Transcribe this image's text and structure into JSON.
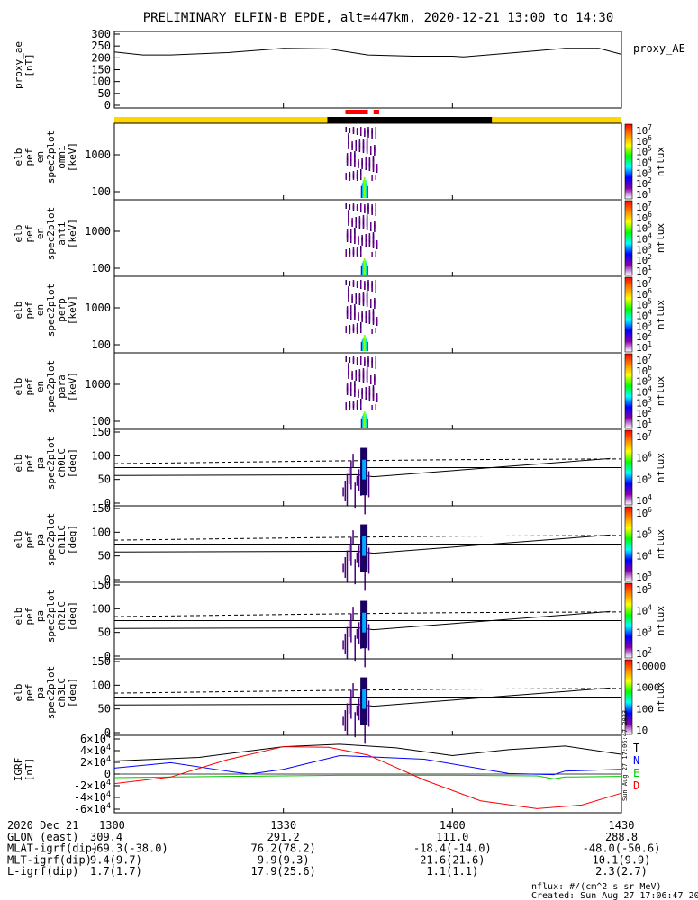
{
  "title": "PRELIMINARY ELFIN-B EPDE, alt=447km, 2020-12-21 13:00 to 14:30",
  "chart_data": {
    "type": "line",
    "x_ticks": [
      "1300",
      "1330",
      "1400",
      "1430"
    ],
    "x_range": [
      "13:00",
      "14:30"
    ],
    "panels": [
      {
        "id": "ae",
        "ylabel": [
          "proxy_ae",
          "[nT]"
        ],
        "yticks": [
          "300",
          "250",
          "200",
          "150",
          "100",
          "50",
          "0"
        ],
        "ylim": [
          0,
          300
        ],
        "legend": "proxy_AE",
        "x_min": [
          0,
          5,
          10,
          20,
          30,
          38,
          45,
          53,
          60,
          62,
          70,
          80,
          86,
          90
        ],
        "values": [
          225,
          212,
          212,
          222,
          240,
          238,
          212,
          207,
          207,
          204,
          220,
          240,
          240,
          215
        ]
      },
      {
        "id": "spec-omni",
        "ylabel": [
          "elb",
          "pef",
          "en",
          "spec2plot",
          "omni",
          "[keV]"
        ],
        "yticks": [
          "1000",
          "100"
        ],
        "cbar_ticks": [
          "10^7",
          "10^6",
          "10^5",
          "10^4",
          "10^3",
          "10^2",
          "10^1"
        ],
        "cbar_label": "nflux"
      },
      {
        "id": "spec-anti",
        "ylabel": [
          "elb",
          "pef",
          "en",
          "spec2plot",
          "anti",
          "[keV]"
        ],
        "yticks": [
          "1000",
          "100"
        ],
        "cbar_ticks": [
          "10^7",
          "10^6",
          "10^5",
          "10^4",
          "10^3",
          "10^2",
          "10^1"
        ],
        "cbar_label": "nflux"
      },
      {
        "id": "spec-perp",
        "ylabel": [
          "elb",
          "pef",
          "en",
          "spec2plot",
          "perp",
          "[keV]"
        ],
        "yticks": [
          "1000",
          "100"
        ],
        "cbar_ticks": [
          "10^7",
          "10^6",
          "10^5",
          "10^4",
          "10^3",
          "10^2",
          "10^1"
        ],
        "cbar_label": "nflux"
      },
      {
        "id": "spec-para",
        "ylabel": [
          "elb",
          "pef",
          "en",
          "spec2plot",
          "para",
          "[keV]"
        ],
        "yticks": [
          "1000",
          "100"
        ],
        "cbar_ticks": [
          "10^7",
          "10^6",
          "10^5",
          "10^4",
          "10^3",
          "10^2",
          "10^1"
        ],
        "cbar_label": "nflux"
      },
      {
        "id": "pa-ch0",
        "ylabel": [
          "elb",
          "pef",
          "pa",
          "spec2plot",
          "ch0LC",
          "[deg]"
        ],
        "yticks": [
          "150",
          "100",
          "50",
          "0"
        ],
        "ylim": [
          0,
          180
        ],
        "cbar_ticks": [
          "10^7",
          "10^6",
          "10^5",
          "10^4"
        ],
        "cbar_label": "nflux"
      },
      {
        "id": "pa-ch1",
        "ylabel": [
          "elb",
          "pef",
          "pa",
          "spec2plot",
          "ch1LC",
          "[deg]"
        ],
        "yticks": [
          "150",
          "100",
          "50",
          "0"
        ],
        "ylim": [
          0,
          180
        ],
        "cbar_ticks": [
          "10^6",
          "10^5",
          "10^4",
          "10^3"
        ],
        "cbar_label": "nflux"
      },
      {
        "id": "pa-ch2",
        "ylabel": [
          "elb",
          "pef",
          "pa",
          "spec2plot",
          "ch2LC",
          "[deg]"
        ],
        "yticks": [
          "150",
          "100",
          "50",
          "0"
        ],
        "ylim": [
          0,
          180
        ],
        "cbar_ticks": [
          "10^5",
          "10^4",
          "10^3",
          "10^2"
        ],
        "cbar_label": "nflux"
      },
      {
        "id": "pa-ch3",
        "ylabel": [
          "elb",
          "pef",
          "pa",
          "spec2plot",
          "ch3LC",
          "[deg]"
        ],
        "yticks": [
          "150",
          "100",
          "50",
          "0"
        ],
        "ylim": [
          0,
          180
        ],
        "cbar_ticks": [
          "10000",
          "1000",
          "100",
          "10"
        ],
        "cbar_label": "nflux"
      },
      {
        "id": "igrf",
        "ylabel": [
          "IGRF",
          "[nT]"
        ],
        "yticks": [
          "6×10^4",
          "4×10^4",
          "2×10^4",
          "0",
          "-2×10^4",
          "-4×10^4",
          "-6×10^4"
        ],
        "ylim": [
          -65000,
          65000
        ],
        "legend": [
          "T",
          "N",
          "E",
          "D"
        ],
        "legend_colors": [
          "#000000",
          "#0000ff",
          "#00cc00",
          "#ff0000"
        ],
        "series": [
          {
            "name": "T",
            "color": "#000000",
            "x_min": [
              0,
              15,
              30,
              40,
              50,
              60,
              70,
              80,
              90
            ],
            "values": [
              22000,
              28000,
              46000,
              50000,
              44000,
              31000,
              41000,
              47000,
              33000
            ]
          },
          {
            "name": "N",
            "color": "#0000ff",
            "x_min": [
              0,
              10,
              20,
              24,
              30,
              40,
              55,
              70,
              78,
              80,
              90
            ],
            "values": [
              10000,
              19000,
              5000,
              0,
              8000,
              31000,
              25000,
              1000,
              -1000,
              5000,
              8000
            ]
          },
          {
            "name": "E",
            "color": "#00cc00",
            "x_min": [
              0,
              20,
              40,
              60,
              75,
              78,
              80,
              90
            ],
            "values": [
              -6000,
              -4000,
              -2000,
              -2000,
              -3000,
              -8000,
              -5000,
              -4000
            ]
          },
          {
            "name": "D",
            "color": "#ff0000",
            "x_min": [
              0,
              10,
              20,
              30,
              38,
              45,
              55,
              65,
              75,
              83,
              90
            ],
            "values": [
              -16000,
              -5000,
              24000,
              46000,
              45000,
              32000,
              -10000,
              -45000,
              -58000,
              -52000,
              -32000
            ]
          }
        ]
      }
    ],
    "ephemeris": {
      "labels": [
        "2020 Dec 21",
        "GLON (east)",
        "MLAT-igrf(dip)",
        "MLT-igrf(dip)",
        "L-igrf(dip)"
      ],
      "col_1300": [
        "1300",
        "309.4",
        "-69.3(-38.0)",
        "9.4(9.7)",
        "1.7(1.7)"
      ],
      "col_1330": [
        "1330",
        "291.2",
        "76.2(78.2)",
        "9.9(9.3)",
        "17.9(25.6)"
      ],
      "col_1400": [
        "1400",
        "111.0",
        "-18.4(-14.0)",
        "21.6(21.6)",
        "1.1(1.1)"
      ],
      "col_1430": [
        "1430",
        "288.8",
        "-48.0(-50.6)",
        "10.1(9.9)",
        "2.3(2.7)"
      ]
    },
    "footer": {
      "units": "nflux: #/(cm^2 s sr MeV)",
      "created": "Created: Sun Aug 27 17:06:47 2023",
      "side_stamp": "Sun Aug 27 17:06:47 2023"
    }
  }
}
